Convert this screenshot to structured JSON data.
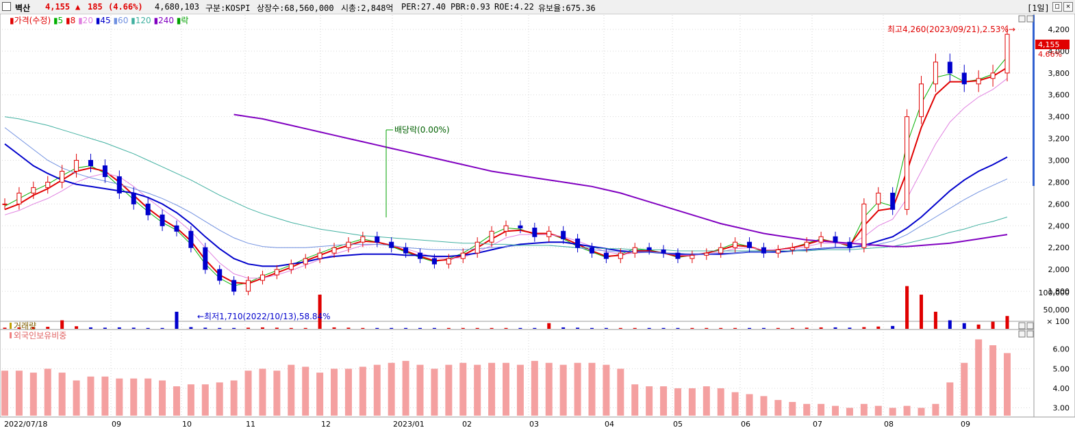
{
  "header": {
    "name": "벽산",
    "price": "4,155",
    "change_arrow": "▲",
    "change": "185",
    "change_pct": "(4.66%)",
    "volume": "4,680,103",
    "market": "구분:KOSPI",
    "shares": "상장수:68,560,000",
    "mcap": "시총:2,848억",
    "per": "PER:27.40",
    "pbr": "PBR:0.93",
    "roe": "ROE:4.22",
    "retention": "유보율:675.36",
    "period": "[1일]",
    "colors": {
      "up": "#e00000",
      "down": "#0000cc"
    }
  },
  "price_panel": {
    "legend": [
      {
        "text": "가격(수정)",
        "color": "#e00000"
      },
      {
        "text": "5",
        "color": "#00b000"
      },
      {
        "text": "8",
        "color": "#e00000"
      },
      {
        "text": "20",
        "color": "#e080e0"
      },
      {
        "text": "45",
        "color": "#0000cc"
      },
      {
        "text": "60",
        "color": "#7090e0"
      },
      {
        "text": "120",
        "color": "#40b0a0"
      },
      {
        "text": "240",
        "color": "#8000c0"
      },
      {
        "text": "락",
        "color": "#00a000"
      }
    ],
    "high_annotation": "최고4,260(2023/09/21),2.53%→",
    "low_annotation": "←최저1,710(2022/10/13),58.84%",
    "dividend_annotation": "배당락(0.00%)",
    "current_price_tag": "4,155",
    "current_pct_tag": "4.66%"
  },
  "volume_panel": {
    "legend": "거래량"
  },
  "foreign_panel": {
    "legend": "외국인보유비중"
  },
  "chart_data": [
    {
      "type": "candlestick",
      "panel": "price",
      "y_ticks": [
        "1,800",
        "2,000",
        "2,200",
        "2,400",
        "2,600",
        "2,800",
        "3,000",
        "3,200",
        "3,400",
        "3,600",
        "3,800",
        "4,000",
        "4,200"
      ],
      "ylim": [
        1600,
        4300
      ],
      "x_ticks": [
        "2022/07/18",
        "09",
        "10",
        "11",
        "12",
        "2023/01",
        "02",
        "03",
        "04",
        "05",
        "06",
        "07",
        "08",
        "09"
      ],
      "close": [
        2600,
        2700,
        2750,
        2800,
        2900,
        3000,
        2950,
        2850,
        2700,
        2600,
        2500,
        2400,
        2350,
        2200,
        2000,
        1900,
        1800,
        1900,
        1950,
        2000,
        2050,
        2100,
        2150,
        2200,
        2250,
        2300,
        2250,
        2200,
        2150,
        2100,
        2050,
        2100,
        2150,
        2250,
        2350,
        2400,
        2380,
        2300,
        2350,
        2280,
        2200,
        2150,
        2100,
        2150,
        2200,
        2180,
        2150,
        2100,
        2130,
        2150,
        2200,
        2250,
        2200,
        2150,
        2180,
        2200,
        2250,
        2300,
        2250,
        2200,
        2600,
        2700,
        2550,
        3400,
        3700,
        3900,
        3800,
        3700,
        3750,
        3800,
        4155
      ],
      "ma": {
        "5": [
          2580,
          2650,
          2720,
          2780,
          2860,
          2930,
          2950,
          2880,
          2760,
          2640,
          2530,
          2430,
          2360,
          2230,
          2050,
          1920,
          1850,
          1880,
          1940,
          1990,
          2040,
          2100,
          2150,
          2200,
          2240,
          2280,
          2250,
          2210,
          2160,
          2110,
          2070,
          2100,
          2150,
          2230,
          2320,
          2380,
          2370,
          2320,
          2330,
          2280,
          2210,
          2160,
          2110,
          2140,
          2190,
          2180,
          2150,
          2110,
          2130,
          2150,
          2190,
          2240,
          2210,
          2160,
          2180,
          2200,
          2240,
          2280,
          2250,
          2210,
          2480,
          2620,
          2580,
          3150,
          3520,
          3760,
          3790,
          3720,
          3740,
          3790,
          3950
        ],
        "8": [
          2550,
          2600,
          2680,
          2740,
          2820,
          2900,
          2930,
          2900,
          2800,
          2680,
          2560,
          2460,
          2380,
          2260,
          2090,
          1950,
          1880,
          1870,
          1920,
          1970,
          2020,
          2080,
          2130,
          2180,
          2220,
          2260,
          2250,
          2220,
          2170,
          2120,
          2080,
          2090,
          2130,
          2200,
          2280,
          2350,
          2360,
          2330,
          2330,
          2290,
          2230,
          2170,
          2120,
          2130,
          2170,
          2170,
          2150,
          2120,
          2130,
          2150,
          2180,
          2220,
          2210,
          2170,
          2180,
          2200,
          2230,
          2270,
          2250,
          2220,
          2400,
          2540,
          2560,
          2900,
          3300,
          3600,
          3720,
          3720,
          3730,
          3770,
          3850
        ],
        "20": [
          2500,
          2540,
          2600,
          2650,
          2720,
          2800,
          2850,
          2880,
          2850,
          2760,
          2650,
          2550,
          2460,
          2350,
          2200,
          2060,
          1960,
          1920,
          1920,
          1950,
          1990,
          2040,
          2090,
          2140,
          2180,
          2220,
          2230,
          2220,
          2190,
          2150,
          2110,
          2100,
          2110,
          2160,
          2220,
          2290,
          2320,
          2320,
          2320,
          2300,
          2260,
          2210,
          2160,
          2140,
          2150,
          2160,
          2150,
          2130,
          2130,
          2140,
          2160,
          2190,
          2200,
          2180,
          2180,
          2190,
          2210,
          2240,
          2240,
          2230,
          2300,
          2400,
          2460,
          2650,
          2900,
          3150,
          3350,
          3480,
          3580,
          3650,
          3750
        ],
        "45": [
          3150,
          3050,
          2950,
          2880,
          2820,
          2780,
          2760,
          2740,
          2720,
          2700,
          2660,
          2600,
          2520,
          2420,
          2300,
          2190,
          2100,
          2050,
          2030,
          2030,
          2050,
          2070,
          2100,
          2120,
          2130,
          2140,
          2140,
          2140,
          2130,
          2130,
          2120,
          2120,
          2130,
          2150,
          2180,
          2210,
          2230,
          2240,
          2250,
          2250,
          2230,
          2210,
          2190,
          2170,
          2160,
          2160,
          2150,
          2140,
          2140,
          2140,
          2140,
          2150,
          2160,
          2160,
          2160,
          2170,
          2180,
          2190,
          2200,
          2200,
          2220,
          2260,
          2300,
          2380,
          2480,
          2600,
          2720,
          2820,
          2900,
          2960,
          3030
        ],
        "60": [
          3300,
          3200,
          3100,
          3000,
          2930,
          2880,
          2840,
          2810,
          2780,
          2740,
          2700,
          2650,
          2590,
          2520,
          2440,
          2360,
          2290,
          2240,
          2210,
          2200,
          2200,
          2200,
          2210,
          2220,
          2230,
          2230,
          2230,
          2220,
          2200,
          2190,
          2180,
          2180,
          2180,
          2190,
          2200,
          2210,
          2220,
          2220,
          2220,
          2210,
          2200,
          2180,
          2170,
          2160,
          2160,
          2160,
          2150,
          2150,
          2140,
          2140,
          2150,
          2150,
          2160,
          2160,
          2170,
          2170,
          2180,
          2190,
          2200,
          2200,
          2210,
          2230,
          2260,
          2320,
          2400,
          2480,
          2560,
          2640,
          2710,
          2770,
          2830
        ],
        "120": [
          3400,
          3380,
          3350,
          3320,
          3280,
          3240,
          3200,
          3160,
          3110,
          3060,
          3000,
          2940,
          2880,
          2820,
          2750,
          2680,
          2620,
          2560,
          2510,
          2470,
          2430,
          2400,
          2370,
          2350,
          2330,
          2310,
          2300,
          2290,
          2280,
          2270,
          2260,
          2250,
          2240,
          2240,
          2230,
          2230,
          2220,
          2220,
          2220,
          2210,
          2200,
          2200,
          2190,
          2190,
          2180,
          2180,
          2180,
          2170,
          2170,
          2170,
          2170,
          2170,
          2170,
          2170,
          2170,
          2170,
          2170,
          2180,
          2180,
          2180,
          2190,
          2200,
          2210,
          2240,
          2270,
          2300,
          2340,
          2370,
          2410,
          2440,
          2480
        ],
        "240": [
          null,
          null,
          null,
          null,
          null,
          null,
          null,
          null,
          null,
          null,
          null,
          null,
          null,
          null,
          null,
          null,
          3420,
          3400,
          3380,
          3350,
          3320,
          3290,
          3260,
          3230,
          3200,
          3170,
          3140,
          3110,
          3080,
          3050,
          3020,
          2990,
          2960,
          2930,
          2900,
          2880,
          2860,
          2840,
          2820,
          2800,
          2780,
          2760,
          2730,
          2700,
          2660,
          2620,
          2580,
          2540,
          2500,
          2460,
          2420,
          2390,
          2360,
          2330,
          2310,
          2290,
          2270,
          2260,
          2250,
          2240,
          2230,
          2220,
          2210,
          2210,
          2220,
          2230,
          2240,
          2260,
          2280,
          2300,
          2320
        ]
      }
    },
    {
      "type": "bar",
      "panel": "volume",
      "y_ticks": [
        "× 100",
        "50,000",
        "100,000"
      ],
      "ylim": [
        0,
        180000
      ],
      "values": [
        4000,
        5000,
        6000,
        7000,
        30000,
        9000,
        5000,
        4000,
        5000,
        4000,
        3000,
        3000,
        60000,
        6000,
        4000,
        3000,
        3000,
        4000,
        5000,
        4000,
        3000,
        3000,
        120000,
        5000,
        4000,
        3000,
        3000,
        3000,
        3000,
        3000,
        3000,
        3000,
        3000,
        3000,
        3000,
        3000,
        3000,
        3000,
        20000,
        5000,
        4000,
        3000,
        3000,
        3000,
        3000,
        3000,
        3000,
        3000,
        3000,
        3000,
        3000,
        3000,
        3000,
        3000,
        3000,
        3000,
        4000,
        5000,
        5000,
        4000,
        6000,
        8000,
        10000,
        150000,
        120000,
        60000,
        30000,
        20000,
        15000,
        25000,
        45000
      ]
    },
    {
      "type": "bar",
      "panel": "foreign_ratio",
      "y_ticks": [
        "3.00",
        "4.00",
        "5.00",
        "6.00"
      ],
      "ylim": [
        2.6,
        6.9
      ],
      "values": [
        4.9,
        4.9,
        4.8,
        5.0,
        4.8,
        4.4,
        4.6,
        4.6,
        4.5,
        4.5,
        4.5,
        4.4,
        4.1,
        4.2,
        4.2,
        4.3,
        4.4,
        4.9,
        5.0,
        4.9,
        5.2,
        5.1,
        4.8,
        5.0,
        5.0,
        5.1,
        5.2,
        5.3,
        5.4,
        5.2,
        5.0,
        5.2,
        5.3,
        5.2,
        5.3,
        5.3,
        5.2,
        5.4,
        5.3,
        5.2,
        5.3,
        5.3,
        5.2,
        5.0,
        4.2,
        4.1,
        4.1,
        4.0,
        4.0,
        4.1,
        4.0,
        3.8,
        3.7,
        3.6,
        3.4,
        3.3,
        3.2,
        3.2,
        3.1,
        3.0,
        3.2,
        3.1,
        3.0,
        3.1,
        3.0,
        3.2,
        4.3,
        5.3,
        6.5,
        6.2,
        5.8
      ]
    }
  ]
}
